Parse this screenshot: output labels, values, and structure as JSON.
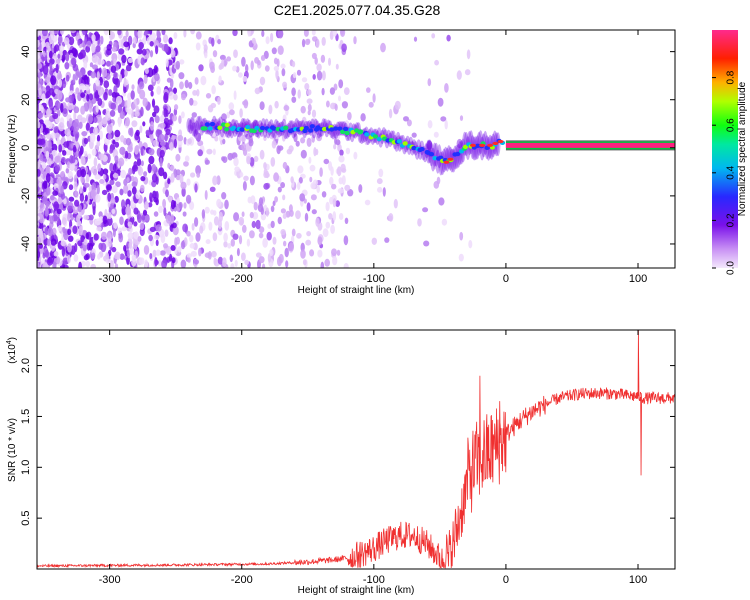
{
  "title": "C2E1.2025.077.04.35.G28",
  "chart_data": [
    {
      "type": "heatmap",
      "xlabel": "Height of straight line (km)",
      "ylabel": "Frequency (Hz)",
      "xlim": [
        -355,
        128
      ],
      "ylim": [
        -50,
        49
      ],
      "xticks": [
        -300,
        -200,
        -100,
        0,
        100
      ],
      "xtick_labels": [
        "-300",
        "-200",
        "-100",
        "0",
        "100"
      ],
      "yticks": [
        -40,
        -20,
        0,
        20,
        40
      ],
      "ytick_labels": [
        "-40",
        "-20",
        "0",
        "20",
        "40"
      ],
      "colorbar": {
        "label": "Normalized spectral amplitude",
        "range": [
          0,
          1
        ],
        "ticks": [
          0.0,
          0.2,
          0.4,
          0.6,
          0.8
        ],
        "tick_labels": [
          "0.0",
          "0.2",
          "0.4",
          "0.6",
          "0.8"
        ],
        "colors": [
          "#e8c8f8",
          "#b070f0",
          "#6a00e8",
          "#2030ff",
          "#00c8f0",
          "#00ff40",
          "#c8ff00",
          "#ffa000",
          "#ff2000",
          "#ff2080"
        ]
      },
      "signal_track": {
        "x": [
          -240,
          -220,
          -200,
          -180,
          -160,
          -140,
          -120,
          -100,
          -90,
          -80,
          -70,
          -60,
          -50,
          -45,
          -40,
          -30,
          -20,
          -10,
          -5,
          0,
          20,
          60,
          100,
          128
        ],
        "freq": [
          9,
          9,
          8,
          8,
          8,
          8,
          7,
          5,
          4,
          2,
          0,
          -2,
          -5,
          -6,
          -4,
          1,
          1,
          1,
          3,
          1,
          1,
          1,
          1,
          1
        ]
      }
    },
    {
      "type": "line",
      "xlabel": "Height of straight line (km)",
      "ylabel": "SNR (10 * v/v)",
      "yscale_label": "(x10",
      "yscale_exp": "4",
      "xlim": [
        -355,
        128
      ],
      "ylim": [
        0,
        2.35
      ],
      "xticks": [
        -300,
        -200,
        -100,
        0,
        100
      ],
      "xtick_labels": [
        "-300",
        "-200",
        "-100",
        "0",
        "100"
      ],
      "yticks": [
        0.5,
        1.0,
        1.5,
        2.0
      ],
      "ytick_labels": [
        "0.5",
        "1.0",
        "1.5",
        "2.0"
      ],
      "color": "#f03030",
      "series_envelope": {
        "x": [
          -355,
          -250,
          -180,
          -150,
          -130,
          -115,
          -100,
          -90,
          -80,
          -70,
          -60,
          -55,
          -48,
          -42,
          -38,
          -33,
          -28,
          -22,
          -18,
          -12,
          -6,
          0,
          10,
          20,
          30,
          40,
          55,
          70,
          85,
          95,
          100,
          105,
          115,
          128
        ],
        "y": [
          0.03,
          0.04,
          0.05,
          0.07,
          0.09,
          0.12,
          0.2,
          0.28,
          0.33,
          0.33,
          0.25,
          0.18,
          0.08,
          0.12,
          0.35,
          0.62,
          0.92,
          1.05,
          1.1,
          1.15,
          1.22,
          1.32,
          1.45,
          1.55,
          1.62,
          1.68,
          1.72,
          1.73,
          1.72,
          1.7,
          1.7,
          1.68,
          1.68,
          1.68
        ],
        "spikes": [
          [
            -20,
            1.9
          ],
          [
            -5,
            1.65
          ],
          [
            100,
            2.35
          ],
          [
            102,
            0.92
          ]
        ]
      }
    }
  ]
}
